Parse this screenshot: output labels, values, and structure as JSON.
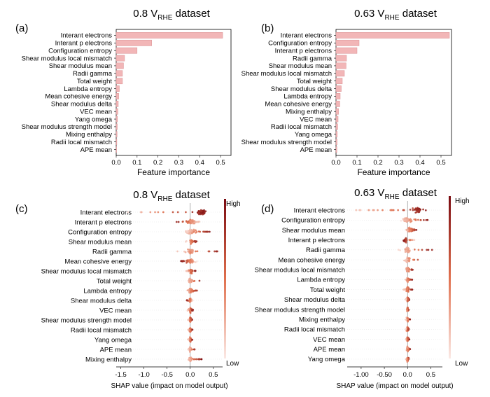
{
  "colors": {
    "bar_fill": "#f2b6b7",
    "bar_stroke": "#d98f92",
    "shap_high": "#7a0a10",
    "shap_low": "#fbe9e5",
    "row_line": "#e6e6e6",
    "zero_line": "#999999"
  },
  "chart_data": [
    {
      "panel": "(a)",
      "type": "bar",
      "orientation": "horizontal",
      "title_main": "0.8 V",
      "title_sub": "RHE",
      "title_tail": " dataset",
      "xlabel": "Feature importance",
      "xlim": [
        0.0,
        0.55
      ],
      "xticks": [
        "0.0",
        "0.1",
        "0.2",
        "0.3",
        "0.4",
        "0.5"
      ],
      "categories": [
        "Interant electrons",
        "Interant p electrons",
        "Configuration entropy",
        "Shear modulus local mismatch",
        "Shear modulus mean",
        "Radii gamma",
        "Total weight",
        "Lambda entropy",
        "Mean cohesive energy",
        "Shear modulus delta",
        "VEC mean",
        "Yang omega",
        "Shear modulus strength model",
        "Mixing enthalpy",
        "Radii local mismatch",
        "APE mean"
      ],
      "values": [
        0.51,
        0.17,
        0.1,
        0.04,
        0.035,
        0.03,
        0.03,
        0.015,
        0.012,
        0.01,
        0.008,
        0.006,
        0.005,
        0.004,
        0.003,
        0.002
      ]
    },
    {
      "panel": "(b)",
      "type": "bar",
      "orientation": "horizontal",
      "title_main": "0.63 V",
      "title_sub": "RHE",
      "title_tail": " dataset",
      "xlabel": "Feature importance",
      "xlim": [
        0.0,
        0.55
      ],
      "xticks": [
        "0.0",
        "0.1",
        "0.2",
        "0.3",
        "0.4",
        "0.5"
      ],
      "categories": [
        "Interant electrons",
        "Configuration entropy",
        "Interant p electrons",
        "Radii gamma",
        "Shear modulus mean",
        "Shear modulus local mismatch",
        "Total weight",
        "Shear modulus delta",
        "Lambda entropy",
        "Mean cohesive energy",
        "Mixing enthalpy",
        "VEC mean",
        "Radii local mismatch",
        "Yang omega",
        "Shear modulus strength model",
        "APE mean"
      ],
      "values": [
        0.54,
        0.11,
        0.1,
        0.05,
        0.048,
        0.04,
        0.03,
        0.025,
        0.02,
        0.018,
        0.012,
        0.01,
        0.008,
        0.006,
        0.005,
        0.004
      ]
    },
    {
      "panel": "(c)",
      "type": "scatter",
      "subtype": "shap-beeswarm",
      "title_main": "0.8 V",
      "title_sub": "RHE",
      "title_tail": " dataset",
      "xlabel": "SHAP value (impact on model output)",
      "xlim": [
        -1.6,
        0.7
      ],
      "xticks": [
        -1.5,
        -1.0,
        -0.5,
        0.0,
        0.5
      ],
      "xtick_labels": [
        "-1.5",
        "-1.0",
        "-0.5",
        "0.0",
        "0.5"
      ],
      "colorbar": {
        "high": "High",
        "low": "Low"
      },
      "features": [
        {
          "name": "Interant electrons",
          "min": -1.4,
          "max": 0.35,
          "center": 0.25,
          "spread": 0.12,
          "high_side": "right"
        },
        {
          "name": "Interant p electrons",
          "min": -0.3,
          "max": 0.2,
          "center": 0.0,
          "spread": 0.1,
          "high_side": "left"
        },
        {
          "name": "Configuration entropy",
          "min": -0.1,
          "max": 0.45,
          "center": 0.0,
          "spread": 0.1,
          "high_side": "right"
        },
        {
          "name": "Shear modulus mean",
          "min": -0.1,
          "max": 0.15,
          "center": 0.02,
          "spread": 0.05,
          "high_side": "right"
        },
        {
          "name": "Radii gamma",
          "min": -0.3,
          "max": 0.65,
          "center": 0.0,
          "spread": 0.08,
          "high_side": "right"
        },
        {
          "name": "Mean cohesive energy",
          "min": -0.2,
          "max": 0.15,
          "center": 0.0,
          "spread": 0.08,
          "high_side": "left"
        },
        {
          "name": "Shear modulus local mismatch",
          "min": -0.1,
          "max": 0.12,
          "center": 0.02,
          "spread": 0.04,
          "high_side": "right"
        },
        {
          "name": "Total weight",
          "min": -0.08,
          "max": 0.25,
          "center": 0.0,
          "spread": 0.05,
          "high_side": "right"
        },
        {
          "name": "Lambda entropy",
          "min": -0.1,
          "max": 0.2,
          "center": 0.0,
          "spread": 0.04,
          "high_side": "right"
        },
        {
          "name": "Shear modulus delta",
          "min": -0.08,
          "max": 0.06,
          "center": 0.0,
          "spread": 0.03,
          "high_side": "left"
        },
        {
          "name": "VEC mean",
          "min": -0.06,
          "max": 0.06,
          "center": 0.0,
          "spread": 0.03,
          "high_side": "right"
        },
        {
          "name": "Shear modulus strength model",
          "min": -0.05,
          "max": 0.05,
          "center": 0.0,
          "spread": 0.02,
          "high_side": "right"
        },
        {
          "name": "Radii local mismatch",
          "min": -0.05,
          "max": 0.05,
          "center": 0.0,
          "spread": 0.02,
          "high_side": "right"
        },
        {
          "name": "Yang omega",
          "min": -0.05,
          "max": 0.05,
          "center": 0.0,
          "spread": 0.02,
          "high_side": "right"
        },
        {
          "name": "APE mean",
          "min": -0.05,
          "max": 0.12,
          "center": 0.0,
          "spread": 0.02,
          "high_side": "right"
        },
        {
          "name": "Mixing enthalpy",
          "min": -0.08,
          "max": 0.25,
          "center": 0.0,
          "spread": 0.03,
          "high_side": "right"
        }
      ]
    },
    {
      "panel": "(d)",
      "type": "scatter",
      "subtype": "shap-beeswarm",
      "title_main": "0.63 V",
      "title_sub": "RHE",
      "title_tail": " dataset",
      "xlabel": "SHAP value (impact on model output)",
      "xlim": [
        -1.3,
        0.75
      ],
      "xticks": [
        -1.0,
        -0.5,
        0.0,
        0.5
      ],
      "xtick_labels": [
        "-1.00",
        "-0.50",
        "0.0",
        "0.5"
      ],
      "colorbar": {
        "high": "High",
        "low": "Low"
      },
      "features": [
        {
          "name": "Interant electrons",
          "min": -1.15,
          "max": 0.4,
          "center": 0.2,
          "spread": 0.12,
          "high_side": "right"
        },
        {
          "name": "Configuration entropy",
          "min": -0.15,
          "max": 0.45,
          "center": 0.0,
          "spread": 0.1,
          "high_side": "right"
        },
        {
          "name": "Shear modulus mean",
          "min": -0.05,
          "max": 0.2,
          "center": 0.05,
          "spread": 0.06,
          "high_side": "right"
        },
        {
          "name": "Interant p electrons",
          "min": -0.1,
          "max": 0.15,
          "center": -0.05,
          "spread": 0.05,
          "high_side": "left"
        },
        {
          "name": "Radii gamma",
          "min": -0.2,
          "max": 0.55,
          "center": 0.0,
          "spread": 0.08,
          "high_side": "right"
        },
        {
          "name": "Mean cohesive energy",
          "min": -0.1,
          "max": 0.35,
          "center": 0.0,
          "spread": 0.06,
          "high_side": "right"
        },
        {
          "name": "Shear modulus local mismatch",
          "min": -0.05,
          "max": 0.12,
          "center": 0.0,
          "spread": 0.04,
          "high_side": "right"
        },
        {
          "name": "Lambda entropy",
          "min": -0.05,
          "max": 0.1,
          "center": 0.0,
          "spread": 0.03,
          "high_side": "right"
        },
        {
          "name": "Total weight",
          "min": -0.1,
          "max": 0.12,
          "center": 0.0,
          "spread": 0.03,
          "high_side": "right"
        },
        {
          "name": "Shear modulus delta",
          "min": -0.04,
          "max": 0.04,
          "center": 0.0,
          "spread": 0.02,
          "high_side": "right"
        },
        {
          "name": "Shear modulus strength model",
          "min": -0.04,
          "max": 0.04,
          "center": 0.0,
          "spread": 0.02,
          "high_side": "right"
        },
        {
          "name": "Mixing enthalpy",
          "min": -0.04,
          "max": 0.06,
          "center": 0.0,
          "spread": 0.02,
          "high_side": "right"
        },
        {
          "name": "Radii local mismatch",
          "min": -0.04,
          "max": 0.04,
          "center": 0.0,
          "spread": 0.02,
          "high_side": "right"
        },
        {
          "name": "VEC mean",
          "min": -0.04,
          "max": 0.04,
          "center": 0.0,
          "spread": 0.02,
          "high_side": "right"
        },
        {
          "name": "APE mean",
          "min": -0.04,
          "max": 0.06,
          "center": 0.0,
          "spread": 0.02,
          "high_side": "right"
        },
        {
          "name": "Yang omega",
          "min": -0.04,
          "max": 0.04,
          "center": 0.0,
          "spread": 0.02,
          "high_side": "right"
        }
      ]
    }
  ]
}
